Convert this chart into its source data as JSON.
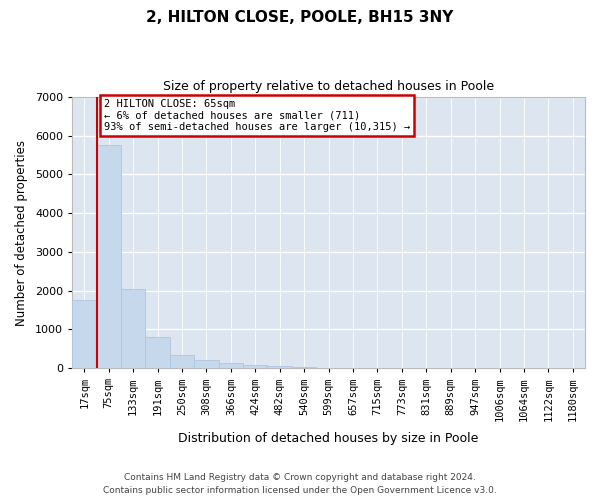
{
  "title_line1": "2, HILTON CLOSE, POOLE, BH15 3NY",
  "title_line2": "Size of property relative to detached houses in Poole",
  "xlabel": "Distribution of detached houses by size in Poole",
  "ylabel": "Number of detached properties",
  "footer_line1": "Contains HM Land Registry data © Crown copyright and database right 2024.",
  "footer_line2": "Contains public sector information licensed under the Open Government Licence v3.0.",
  "annotation_line1": "2 HILTON CLOSE: 65sqm",
  "annotation_line2": "← 6% of detached houses are smaller (711)",
  "annotation_line3": "93% of semi-detached houses are larger (10,315) →",
  "bar_color": "#c5d8ec",
  "bar_edge_color": "#aec6e0",
  "highlight_line_color": "#cc0000",
  "annotation_box_color": "#cc0000",
  "plot_bg_color": "#dde6f0",
  "categories": [
    "17sqm",
    "75sqm",
    "133sqm",
    "191sqm",
    "250sqm",
    "308sqm",
    "366sqm",
    "424sqm",
    "482sqm",
    "540sqm",
    "599sqm",
    "657sqm",
    "715sqm",
    "773sqm",
    "831sqm",
    "889sqm",
    "947sqm",
    "1006sqm",
    "1064sqm",
    "1122sqm",
    "1180sqm"
  ],
  "values": [
    1750,
    5750,
    2050,
    800,
    350,
    220,
    130,
    90,
    55,
    35,
    0,
    0,
    0,
    0,
    0,
    0,
    0,
    0,
    0,
    0,
    0
  ],
  "ylim": [
    0,
    7000
  ],
  "yticks": [
    0,
    1000,
    2000,
    3000,
    4000,
    5000,
    6000,
    7000
  ],
  "figsize": [
    6.0,
    5.0
  ],
  "dpi": 100
}
